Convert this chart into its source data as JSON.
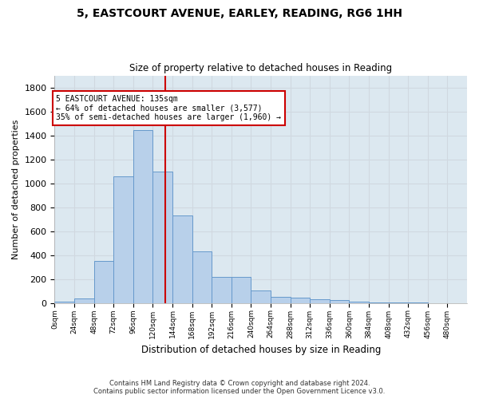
{
  "title_line1": "5, EASTCOURT AVENUE, EARLEY, READING, RG6 1HH",
  "title_line2": "Size of property relative to detached houses in Reading",
  "xlabel": "Distribution of detached houses by size in Reading",
  "ylabel": "Number of detached properties",
  "bin_labels": [
    "0sqm",
    "24sqm",
    "48sqm",
    "72sqm",
    "96sqm",
    "120sqm",
    "144sqm",
    "168sqm",
    "192sqm",
    "216sqm",
    "240sqm",
    "264sqm",
    "288sqm",
    "312sqm",
    "336sqm",
    "360sqm",
    "384sqm",
    "408sqm",
    "432sqm",
    "456sqm",
    "480sqm"
  ],
  "bar_values": [
    10,
    35,
    350,
    1055,
    1445,
    1095,
    730,
    430,
    215,
    215,
    105,
    52,
    45,
    30,
    22,
    10,
    5,
    5,
    2,
    1,
    0
  ],
  "bin_width": 24,
  "bar_color": "#b8d0ea",
  "bar_edge_color": "#6699cc",
  "property_size": 135,
  "vline_color": "#cc0000",
  "annotation_line1": "5 EASTCOURT AVENUE: 135sqm",
  "annotation_line2": "← 64% of detached houses are smaller (3,577)",
  "annotation_line3": "35% of semi-detached houses are larger (1,960) →",
  "annotation_box_color": "#cc0000",
  "annotation_box_bg": "#ffffff",
  "ylim": [
    0,
    1900
  ],
  "yticks": [
    0,
    200,
    400,
    600,
    800,
    1000,
    1200,
    1400,
    1600,
    1800
  ],
  "grid_color": "#d0d8e0",
  "bg_color": "#dce8f0",
  "fig_bg_color": "#ffffff",
  "footer_line1": "Contains HM Land Registry data © Crown copyright and database right 2024.",
  "footer_line2": "Contains public sector information licensed under the Open Government Licence v3.0."
}
